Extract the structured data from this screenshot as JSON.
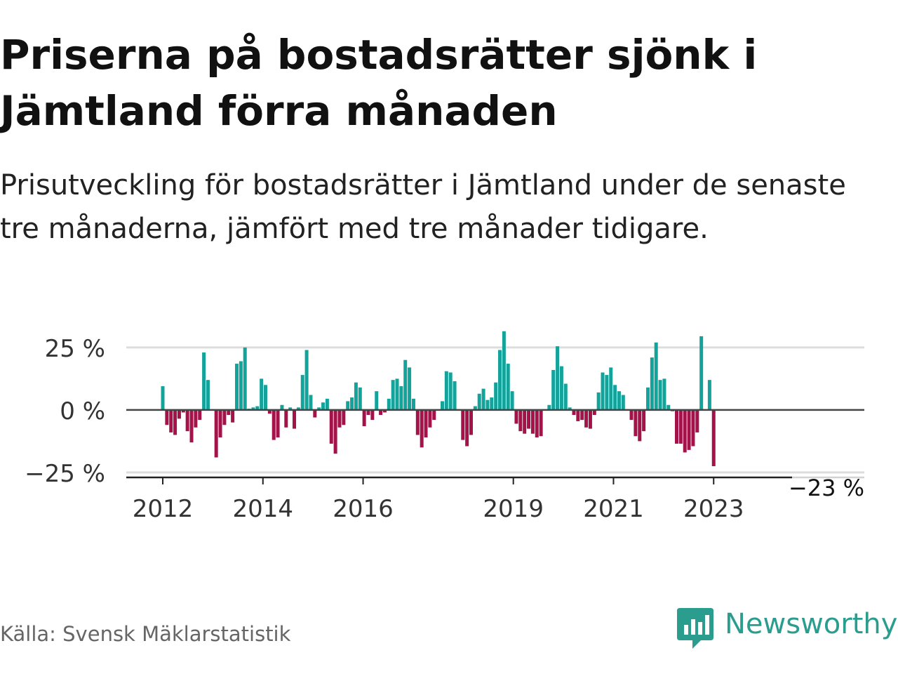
{
  "title": "Priserna på bostadsrätter sjönk i Jämtland förra månaden",
  "subtitle": "Prisutveckling för bostadsrätter i Jämtland under de senaste tre månaderna, jämfört med tre månader tidigare.",
  "source": "Källa: Svensk Mäklarstatistik",
  "brand": "Newsworthy",
  "colors": {
    "positive": "#14a39a",
    "negative": "#a3134a",
    "brand": "#2a9d8f"
  },
  "chart_data": {
    "type": "bar",
    "ylim": [
      -27,
      32
    ],
    "yticks": [
      {
        "value": 25,
        "label": "25 %"
      },
      {
        "value": 0,
        "label": "0 %"
      },
      {
        "value": -25,
        "label": "−25 %"
      }
    ],
    "xticks": [
      {
        "value": 2012.0,
        "label": "2012"
      },
      {
        "value": 2014.0,
        "label": "2014"
      },
      {
        "value": 2016.0,
        "label": "2016"
      },
      {
        "value": 2019.0,
        "label": "2019"
      },
      {
        "value": 2021.0,
        "label": "2021"
      },
      {
        "value": 2023.0,
        "label": "2023"
      }
    ],
    "x_start": 2012.0,
    "x_end": 2023.0,
    "annotation": {
      "label": "−23 %",
      "index": 131
    },
    "series": [
      {
        "values": [
          9.5,
          -6,
          -9,
          -10,
          -3.5,
          -1,
          -8.5,
          -13,
          -7,
          -4,
          23,
          12,
          0,
          -19,
          -11,
          -6,
          -2,
          -5,
          18.5,
          19.5,
          25,
          0.5,
          1,
          1.5,
          12.5,
          10,
          -1.5,
          -12,
          -11,
          2,
          -7,
          1,
          -7.5,
          1,
          14,
          24,
          6,
          -3,
          1,
          3,
          4.5,
          -13.5,
          -17.5,
          -7,
          -6,
          3.5,
          5,
          11,
          9,
          -6.5,
          -2,
          -4,
          7.5,
          -2,
          -1,
          4.5,
          12,
          12.5,
          9.5,
          20,
          17,
          4.5,
          -10,
          -15,
          -11,
          -7,
          -4,
          0,
          3.5,
          15.5,
          15,
          11.5,
          0,
          -12,
          -14.5,
          -10,
          1.5,
          6.5,
          8.5,
          4,
          5,
          11,
          24,
          31.5,
          18.5,
          7.5,
          -5.5,
          -8.5,
          -9.5,
          -7.5,
          -9.5,
          -11,
          -10.5,
          0,
          2,
          16,
          25.5,
          17.5,
          10.5,
          1,
          -2,
          -4.5,
          -4,
          -7,
          -7.5,
          -2,
          7,
          15,
          14,
          17,
          10,
          7.5,
          6,
          0,
          -4,
          -10.5,
          -12.5,
          -8.5,
          9,
          21,
          27,
          12,
          12.5,
          2,
          -0.5,
          -13.5,
          -13.5,
          -17,
          -16,
          -14.5,
          -9,
          29.5,
          0,
          12,
          -22.5
        ]
      }
    ]
  }
}
